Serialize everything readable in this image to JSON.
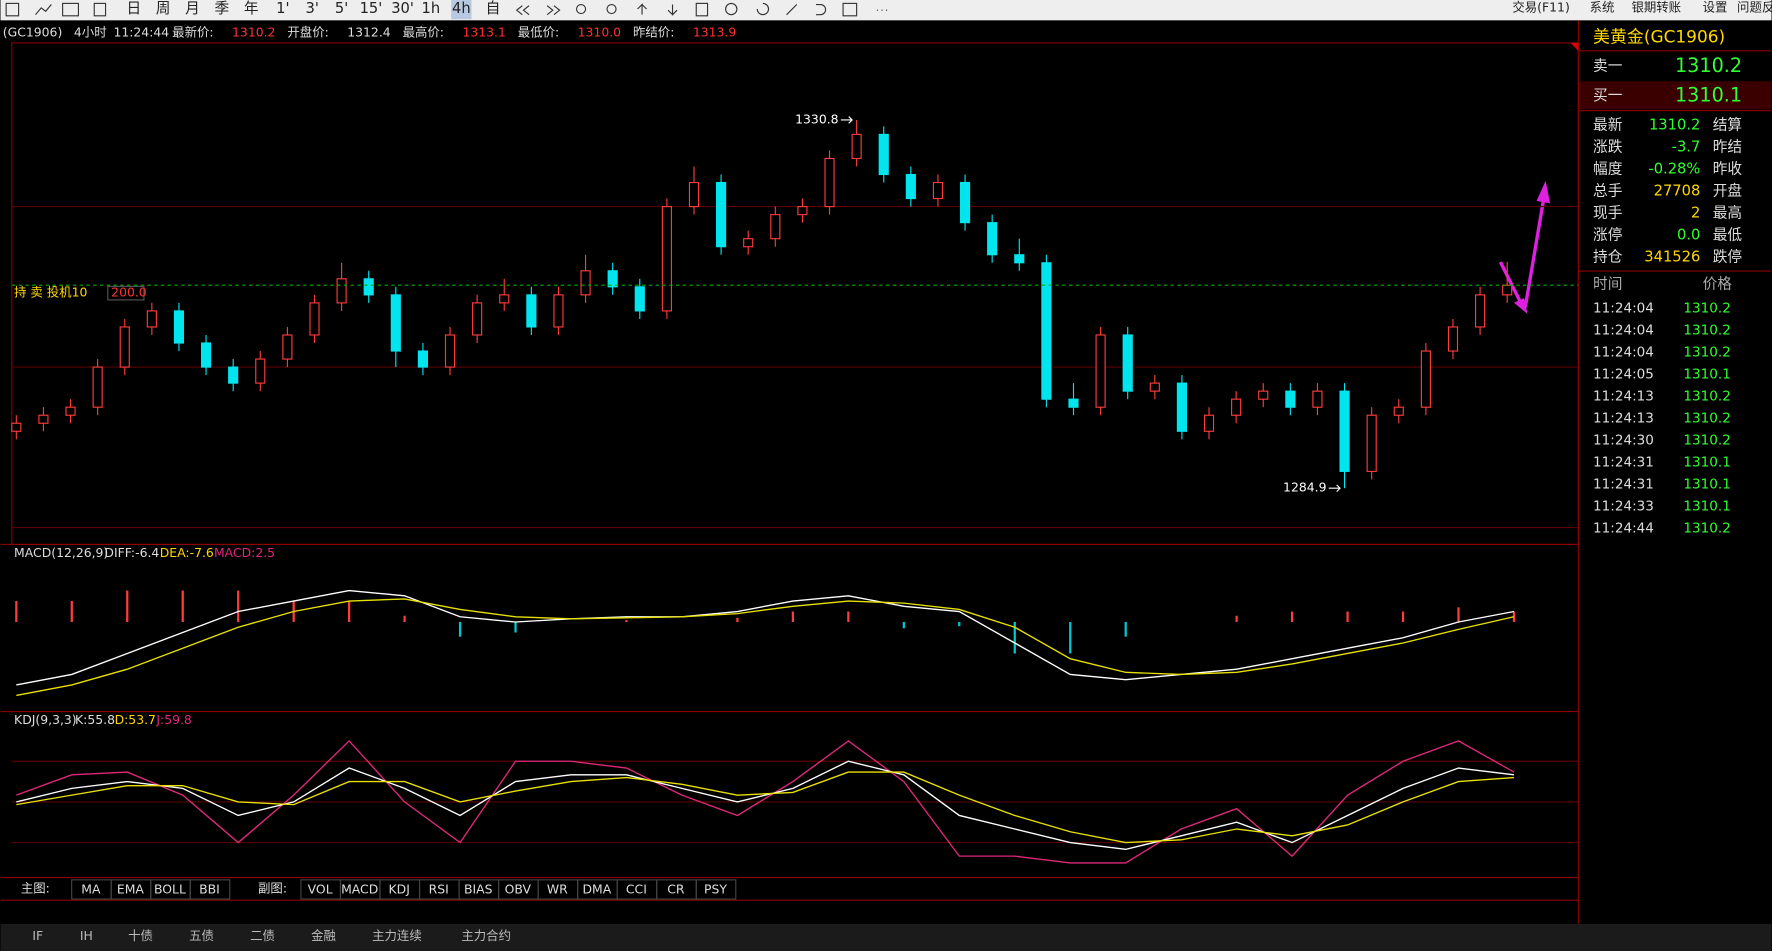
{
  "toolbar": {
    "periods": [
      "日",
      "周",
      "月",
      "季",
      "年",
      "1'",
      "3'",
      "5'",
      "15'",
      "30'",
      "1h",
      "4h",
      "自"
    ],
    "active": 11,
    "menu": [
      "交易(F11)",
      "系统",
      "银期转账",
      "设置",
      "问题反"
    ]
  },
  "info": {
    "symbol": "(GC1906)",
    "period": "4小时",
    "time": "11:24:44",
    "fields": [
      {
        "label": "最新价:",
        "value": "1310.2"
      },
      {
        "label": "开盘价:",
        "value": "1312.4"
      },
      {
        "label": "最高价:",
        "value": "1313.1"
      },
      {
        "label": "最低价:",
        "value": "1310.0"
      },
      {
        "label": "昨结价:",
        "value": "1313.9"
      }
    ]
  },
  "chart": {
    "ylim": [
      1277.9,
      1340.4
    ],
    "grid": [
      1280,
      1300,
      1320
    ],
    "candles": [
      [
        1292,
        1294,
        1291,
        1293
      ],
      [
        1293,
        1295,
        1292,
        1294
      ],
      [
        1294,
        1296,
        1293,
        1295
      ],
      [
        1295,
        1301,
        1294,
        1300
      ],
      [
        1300,
        1306,
        1299,
        1305
      ],
      [
        1305,
        1308,
        1304,
        1307
      ],
      [
        1307,
        1308,
        1302,
        1303
      ],
      [
        1303,
        1304,
        1299,
        1300
      ],
      [
        1300,
        1301,
        1297,
        1298
      ],
      [
        1298,
        1302,
        1297,
        1301
      ],
      [
        1301,
        1305,
        1300,
        1304
      ],
      [
        1304,
        1309,
        1303,
        1308
      ],
      [
        1308,
        1313,
        1307,
        1311
      ],
      [
        1311,
        1312,
        1308,
        1309
      ],
      [
        1309,
        1310,
        1300,
        1302
      ],
      [
        1302,
        1303,
        1299,
        1300
      ],
      [
        1300,
        1305,
        1299,
        1304
      ],
      [
        1304,
        1309,
        1303,
        1308
      ],
      [
        1308,
        1311,
        1307,
        1309
      ],
      [
        1309,
        1310,
        1304,
        1305
      ],
      [
        1305,
        1310,
        1304,
        1309
      ],
      [
        1309,
        1314,
        1308,
        1312
      ],
      [
        1312,
        1313,
        1309,
        1310
      ],
      [
        1310,
        1311,
        1306,
        1307
      ],
      [
        1307,
        1321,
        1306,
        1320
      ],
      [
        1320,
        1325,
        1319,
        1323
      ],
      [
        1323,
        1324,
        1314,
        1315
      ],
      [
        1315,
        1317,
        1314,
        1316
      ],
      [
        1316,
        1320,
        1315,
        1319
      ],
      [
        1319,
        1321,
        1318,
        1320
      ],
      [
        1320,
        1327,
        1319,
        1326
      ],
      [
        1326,
        1330.8,
        1325,
        1329
      ],
      [
        1329,
        1330,
        1323,
        1324
      ],
      [
        1324,
        1325,
        1320,
        1321
      ],
      [
        1321,
        1324,
        1320,
        1323
      ],
      [
        1323,
        1324,
        1317,
        1318
      ],
      [
        1318,
        1319,
        1313,
        1314
      ],
      [
        1314,
        1316,
        1312,
        1313
      ],
      [
        1313,
        1314,
        1295,
        1296
      ],
      [
        1296,
        1298,
        1294,
        1295
      ],
      [
        1295,
        1305,
        1294,
        1304
      ],
      [
        1304,
        1305,
        1296,
        1297
      ],
      [
        1297,
        1299,
        1296,
        1298
      ],
      [
        1298,
        1299,
        1291,
        1292
      ],
      [
        1292,
        1295,
        1291,
        1294
      ],
      [
        1294,
        1297,
        1293,
        1296
      ],
      [
        1296,
        1298,
        1295,
        1297
      ],
      [
        1297,
        1298,
        1294,
        1295
      ],
      [
        1295,
        1298,
        1294,
        1297
      ],
      [
        1297,
        1298,
        1284.9,
        1287
      ],
      [
        1287,
        1295,
        1286,
        1294
      ],
      [
        1294,
        1296,
        1293,
        1295
      ],
      [
        1295,
        1303,
        1294,
        1302
      ],
      [
        1302,
        1306,
        1301,
        1305
      ],
      [
        1305,
        1310,
        1304,
        1309
      ],
      [
        1309,
        1313.1,
        1308,
        1310.2
      ]
    ],
    "high_label": "1330.8",
    "high_index": 31,
    "low_label": "1284.9",
    "low_index": 49,
    "position": {
      "text": "持 卖 投机10",
      "amount": "200.0",
      "price": 1310.2
    }
  },
  "macd": {
    "name": "MACD(12,26,9)",
    "diff_label": "DIFF:-6.4",
    "dea_label": "DEA:-7.6",
    "macd_label": "MACD:2.5",
    "ylim": [
      -8,
      6
    ],
    "diff": [
      -6,
      -5,
      -3,
      -1,
      1,
      2,
      3,
      2.5,
      0.5,
      0,
      0.3,
      0.5,
      0.5,
      1,
      2,
      2.5,
      1.5,
      1,
      -2,
      -5,
      -5.5,
      -5,
      -4.5,
      -3.5,
      -2.5,
      -1.5,
      0,
      1
    ],
    "dea": [
      -7,
      -6,
      -4.5,
      -2.5,
      -0.5,
      1,
      2,
      2.2,
      1.2,
      0.5,
      0.3,
      0.4,
      0.5,
      0.8,
      1.5,
      2,
      1.8,
      1.2,
      -0.5,
      -3.5,
      -4.8,
      -5,
      -4.8,
      -4,
      -3,
      -2,
      -0.7,
      0.5
    ],
    "hist": [
      2,
      2,
      3,
      3,
      3,
      2,
      2,
      0.6,
      -1.4,
      -1,
      0,
      0.2,
      0,
      0.4,
      1,
      1,
      -0.6,
      -0.4,
      -3,
      -3,
      -1.4,
      0,
      0.6,
      1,
      1,
      1,
      1.4,
      1
    ]
  },
  "kdj": {
    "name": "KDJ(9,3,3)",
    "k_label": "K:55.8",
    "d_label": "D:53.7",
    "j_label": "J:59.8",
    "ylim": [
      0,
      100
    ],
    "grid": [
      20,
      50,
      80
    ],
    "k": [
      50,
      60,
      65,
      60,
      40,
      50,
      75,
      60,
      40,
      65,
      70,
      70,
      60,
      50,
      60,
      80,
      70,
      40,
      30,
      20,
      15,
      25,
      35,
      20,
      40,
      60,
      75,
      70
    ],
    "d": [
      48,
      55,
      62,
      62,
      50,
      48,
      65,
      65,
      50,
      58,
      65,
      68,
      63,
      55,
      57,
      72,
      72,
      55,
      40,
      28,
      20,
      22,
      30,
      25,
      33,
      50,
      65,
      68
    ],
    "j": [
      55,
      70,
      72,
      55,
      20,
      55,
      95,
      50,
      20,
      80,
      80,
      75,
      55,
      40,
      65,
      95,
      65,
      10,
      10,
      5,
      5,
      30,
      45,
      10,
      55,
      80,
      95,
      72
    ]
  },
  "quote": {
    "title": "美黄金(GC1906)",
    "sell_label": "卖一",
    "sell": "1310.2",
    "buy_label": "买一",
    "buy": "1310.1",
    "rows": [
      {
        "label": "最新",
        "value": "1310.2",
        "right": "结算"
      },
      {
        "label": "涨跌",
        "value": "-3.7",
        "right": "昨结"
      },
      {
        "label": "幅度",
        "value": "-0.28%",
        "right": "昨收"
      },
      {
        "label": "总手",
        "value": "27708",
        "right": "开盘"
      },
      {
        "label": "现手",
        "value": "2",
        "right": "最高"
      },
      {
        "label": "涨停",
        "value": "0.0",
        "right": "最低"
      },
      {
        "label": "持仓",
        "value": "341526",
        "right": "跌停"
      }
    ]
  },
  "ticks": {
    "headers": [
      "时间",
      "价格"
    ],
    "rows": [
      [
        "11:24:04",
        "1310.2"
      ],
      [
        "11:24:04",
        "1310.2"
      ],
      [
        "11:24:04",
        "1310.2"
      ],
      [
        "11:24:05",
        "1310.1"
      ],
      [
        "11:24:13",
        "1310.2"
      ],
      [
        "11:24:13",
        "1310.2"
      ],
      [
        "11:24:30",
        "1310.2"
      ],
      [
        "11:24:31",
        "1310.1"
      ],
      [
        "11:24:31",
        "1310.1"
      ],
      [
        "11:24:33",
        "1310.1"
      ],
      [
        "11:24:44",
        "1310.2"
      ]
    ]
  },
  "buttons": {
    "main_label": "主图:",
    "main": [
      "MA",
      "EMA",
      "BOLL",
      "BBI"
    ],
    "sub_label": "副图:",
    "sub": [
      "VOL",
      "MACD",
      "KDJ",
      "RSI",
      "BIAS",
      "OBV",
      "WR",
      "DMA",
      "CCI",
      "CR",
      "PSY"
    ]
  },
  "tabs": [
    "IF",
    "IH",
    "十债",
    "五债",
    "二债",
    "金融",
    "主力连续",
    "主力合约"
  ]
}
